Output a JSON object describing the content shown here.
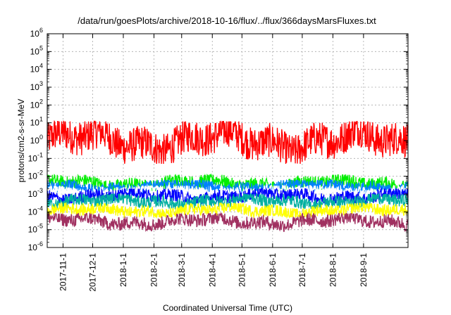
{
  "chart_data": {
    "type": "line",
    "title": "/data/run/goesPlots/archive/2018-10-16/flux/../flux/366daysMarsFluxes.txt",
    "xlabel": "Coordinated Universal Time (UTC)",
    "ylabel": "protons/cm2-s-sr-MeV",
    "y_scale": "log",
    "ylim": [
      1e-06,
      1000000.0
    ],
    "xlim": [
      "2017-10-16",
      "2018-10-16"
    ],
    "x_ticks": [
      "2017-11-1",
      "2017-12-1",
      "2018-1-1",
      "2018-2-1",
      "2018-3-1",
      "2018-4-1",
      "2018-5-1",
      "2018-6-1",
      "2018-7-1",
      "2018-8-1",
      "2018-9-1"
    ],
    "y_ticks": [
      {
        "base": "10",
        "exp": "-6"
      },
      {
        "base": "10",
        "exp": "-5"
      },
      {
        "base": "10",
        "exp": "-4"
      },
      {
        "base": "10",
        "exp": "-3"
      },
      {
        "base": "10",
        "exp": "-2"
      },
      {
        "base": "10",
        "exp": "-1"
      },
      {
        "base": "10",
        "exp": "0"
      },
      {
        "base": "10",
        "exp": "1"
      },
      {
        "base": "10",
        "exp": "2"
      },
      {
        "base": "10",
        "exp": "3"
      },
      {
        "base": "10",
        "exp": "4"
      },
      {
        "base": "10",
        "exp": "5"
      },
      {
        "base": "10",
        "exp": "6"
      }
    ],
    "grid": true,
    "legend": "none",
    "series": [
      {
        "color": "#ff0000",
        "median": 1.0,
        "low": 0.05,
        "high": 12
      },
      {
        "color": "#00ee00",
        "median": 0.004,
        "low": 0.0015,
        "high": 0.012
      },
      {
        "color": "#0080ff",
        "median": 0.0025,
        "low": 0.001,
        "high": 0.006
      },
      {
        "color": "#ffffff",
        "median": 0.0015,
        "low": 0.0006,
        "high": 0.003
      },
      {
        "color": "#0000ff",
        "median": 0.0008,
        "low": 0.0003,
        "high": 0.002
      },
      {
        "color": "#00b0a0",
        "median": 0.0004,
        "low": 0.00015,
        "high": 0.001
      },
      {
        "color": "#ffff00",
        "median": 0.00012,
        "low": 5e-05,
        "high": 0.0003
      },
      {
        "color": "#a03060",
        "median": 3e-05,
        "low": 8e-06,
        "high": 8e-05
      }
    ]
  }
}
